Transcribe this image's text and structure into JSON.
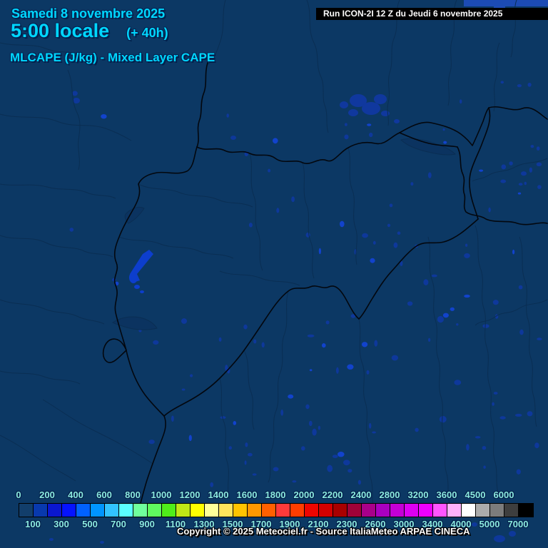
{
  "header": {
    "date": "Samedi 8 novembre 2025",
    "time": "5:00 locale",
    "offset": "(+ 40h)",
    "parameter": "MLCAPE (J/kg) - Mixed Layer CAPE",
    "run": "Run ICON-2I 12 Z du Jeudi 6 novembre 2025"
  },
  "footer": {
    "copyright": "Copyright © 2025 Meteociel.fr - Source ItaliaMeteo ARPAE CINECA"
  },
  "colors": {
    "map_background": "#0c3864",
    "country_border": "#03070e",
    "region_border": "#0a2e53",
    "accent_text": "#00d7ff",
    "run_text": "#ffffff",
    "legend_label": "#8ceadf",
    "speckle": "#0e389b",
    "speckle_bright": "#1243cc",
    "corner_patch": "#1c4bb4"
  },
  "chart_data": {
    "type": "heatmap",
    "title": "MLCAPE (J/kg) - Mixed Layer CAPE",
    "unit": "J/kg",
    "valid_time": "Samedi 8 novembre 2025 5:00 locale (+ 40h)",
    "model_run": "Run ICON-2I 12 Z du Jeudi 6 novembre 2025",
    "legend_position": "bottom",
    "legend_edge_values": [
      0,
      100,
      200,
      300,
      400,
      500,
      600,
      700,
      800,
      900,
      1000,
      1100,
      1200,
      1300,
      1400,
      1500,
      1600,
      1700,
      1800,
      1900,
      2000,
      2100,
      2200,
      2300,
      2400,
      2600,
      2800,
      3000,
      3200,
      3400,
      3600,
      4000,
      4500,
      5000,
      6000,
      7000
    ],
    "legend_colors": [
      "#123e6b",
      "#0839ae",
      "#0a17cf",
      "#0513ff",
      "#0061ff",
      "#0095ff",
      "#32c3ff",
      "#5affff",
      "#6fff9c",
      "#5ffa5f",
      "#4fee1a",
      "#c0e816",
      "#ffff00",
      "#ffff99",
      "#ffe45c",
      "#ffc400",
      "#ff9800",
      "#ff6000",
      "#ff3a3a",
      "#ff3d00",
      "#ee0500",
      "#d40000",
      "#a90000",
      "#a00238",
      "#a8008a",
      "#a800c0",
      "#c400d6",
      "#dc00f2",
      "#ee00ff",
      "#ff55ff",
      "#ffb2fa",
      "#ffffff",
      "#ababab",
      "#7c7c7c",
      "#3e3e3e",
      "#000000"
    ],
    "legend_labels_top": [
      0,
      200,
      400,
      600,
      800,
      1000,
      1200,
      1400,
      1600,
      1800,
      2000,
      2200,
      2400,
      2800,
      3200,
      3600,
      4500,
      6000
    ],
    "legend_labels_bottom": [
      100,
      300,
      500,
      700,
      900,
      1100,
      1300,
      1500,
      1700,
      1900,
      2100,
      2300,
      2600,
      3000,
      3400,
      4000,
      5000,
      7000
    ],
    "depicted_summary": "Map of Switzerland and surrounding Alps: background near 0 J/kg with scattered small patches of roughly 100-300 J/kg (notably near Lake Constance, around Geneva, and across the Po valley / northeastern Italy)."
  }
}
